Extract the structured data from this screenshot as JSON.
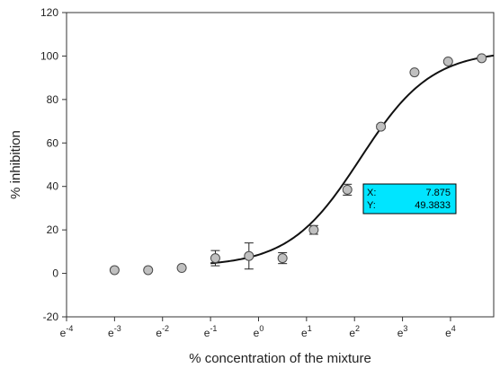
{
  "chart_data": {
    "type": "scatter",
    "xlabel": "% concentration of the mixture",
    "ylabel": "% inhibition",
    "xscale": "natural-log",
    "xlim_exponent": [
      -4,
      4.9
    ],
    "ylim": [
      -20,
      120
    ],
    "y_ticks": [
      -20,
      0,
      20,
      40,
      60,
      80,
      100,
      120
    ],
    "x_ticks": [
      {
        "base": "e",
        "exp": "-4",
        "pos": -4
      },
      {
        "base": "e",
        "exp": "-3",
        "pos": -3
      },
      {
        "base": "e",
        "exp": "-2",
        "pos": -2
      },
      {
        "base": "e",
        "exp": "-1",
        "pos": -1
      },
      {
        "base": "e",
        "exp": "0",
        "pos": 0
      },
      {
        "base": "e",
        "exp": "1",
        "pos": 1
      },
      {
        "base": "e",
        "exp": "2",
        "pos": 2
      },
      {
        "base": "e",
        "exp": "3",
        "pos": 3
      },
      {
        "base": "e",
        "exp": "4",
        "pos": 4
      }
    ],
    "points": [
      {
        "x_exp": -3.0,
        "y": 1.5,
        "err": 0
      },
      {
        "x_exp": -2.3,
        "y": 1.5,
        "err": 0
      },
      {
        "x_exp": -1.6,
        "y": 2.5,
        "err": 0
      },
      {
        "x_exp": -0.9,
        "y": 7.0,
        "err": 3.5
      },
      {
        "x_exp": -0.2,
        "y": 8.0,
        "err": 6.0
      },
      {
        "x_exp": 0.5,
        "y": 7.0,
        "err": 2.5
      },
      {
        "x_exp": 1.15,
        "y": 20.0,
        "err": 2.0
      },
      {
        "x_exp": 1.85,
        "y": 38.5,
        "err": 2.5
      },
      {
        "x_exp": 2.55,
        "y": 67.5,
        "err": 1.0
      },
      {
        "x_exp": 3.25,
        "y": 92.5,
        "err": 0
      },
      {
        "x_exp": 3.95,
        "y": 97.5,
        "err": 0
      },
      {
        "x_exp": 4.65,
        "y": 99.0,
        "err": 0
      }
    ],
    "fit": {
      "type": "sigmoid",
      "x_exp_range": [
        -1.0,
        4.9
      ],
      "bottom": 3.2,
      "top": 102.5,
      "center_exp": 2.12,
      "slope": 1.35
    },
    "datatip": {
      "x_label": "X:",
      "x_value": "7.875",
      "y_label": "Y:",
      "y_value": "49.3833",
      "fill": "#00e5ff"
    },
    "colors": {
      "marker_fill": "#c0c0c0",
      "marker_stroke": "#4a4a4a",
      "line": "#111111",
      "axis": "#333333"
    }
  }
}
